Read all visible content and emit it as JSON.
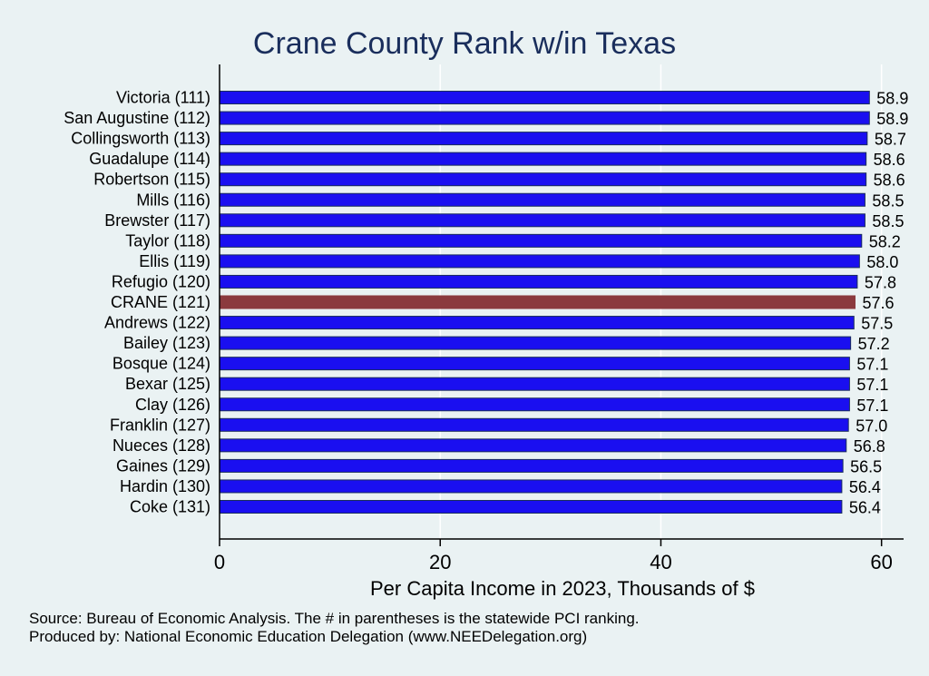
{
  "chart_data": {
    "type": "bar",
    "orientation": "horizontal",
    "title": "Crane County Rank w/in Texas",
    "xlabel": "Per Capita Income in 2023, Thousands of $",
    "ylabel": "",
    "xlim": [
      0,
      62
    ],
    "xticks": [
      0,
      20,
      40,
      60
    ],
    "grid": true,
    "categories": [
      "Victoria (111)",
      "San Augustine (112)",
      "Collingsworth (113)",
      "Guadalupe (114)",
      "Robertson (115)",
      "Mills (116)",
      "Brewster (117)",
      "Taylor (118)",
      "Ellis (119)",
      "Refugio (120)",
      "CRANE (121)",
      "Andrews (122)",
      "Bailey (123)",
      "Bosque (124)",
      "Bexar (125)",
      "Clay (126)",
      "Franklin (127)",
      "Nueces (128)",
      "Gaines (129)",
      "Hardin (130)",
      "Coke (131)"
    ],
    "values": [
      58.9,
      58.9,
      58.7,
      58.6,
      58.6,
      58.5,
      58.5,
      58.2,
      58.0,
      57.8,
      57.6,
      57.5,
      57.2,
      57.1,
      57.1,
      57.1,
      57.0,
      56.8,
      56.5,
      56.4,
      56.4
    ],
    "value_labels": [
      "58.9",
      "58.9",
      "58.7",
      "58.6",
      "58.6",
      "58.5",
      "58.5",
      "58.2",
      "58.0",
      "57.8",
      "57.6",
      "57.5",
      "57.2",
      "57.1",
      "57.1",
      "57.1",
      "57.0",
      "56.8",
      "56.5",
      "56.4",
      "56.4"
    ],
    "highlight_index": 10,
    "colors": {
      "bar": "#1a0ff0",
      "highlight": "#8b3a3e",
      "edge": "#1a2e5c",
      "grid": "#ffffff"
    }
  },
  "footer": {
    "source": "Source: Bureau of Economic Analysis. The # in parentheses is the statewide PCI ranking.",
    "producer": "Produced by: National Economic Education Delegation (www.NEEDelegation.org)"
  }
}
